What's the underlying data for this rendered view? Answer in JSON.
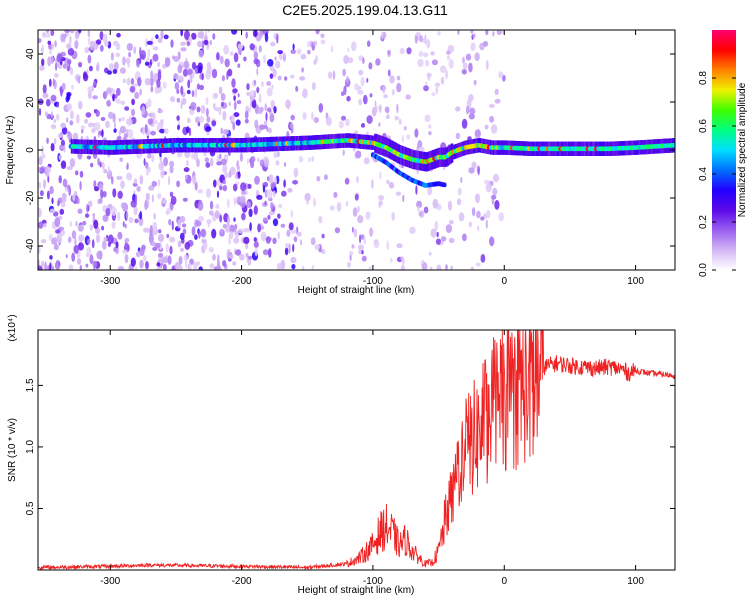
{
  "title": "C2E5.2025.199.04.13.G11",
  "chart_data": [
    {
      "type": "heatmap",
      "xlabel": "Height of straight line (km)",
      "ylabel": "Frequency (Hz)",
      "xlim": [
        -355,
        130
      ],
      "ylim": [
        -50,
        50
      ],
      "xticks": [
        -300,
        -200,
        -100,
        0,
        100
      ],
      "yticks": [
        -40,
        -20,
        0,
        20,
        40
      ],
      "colorbar": {
        "label": "Normalized spectral amplitude",
        "range": [
          0,
          1
        ],
        "ticks": [
          "0.0",
          "0.2",
          "0.4",
          "0.6",
          "0.8"
        ],
        "tick_values": [
          0,
          0.2,
          0.4,
          0.6,
          0.8
        ],
        "colors": [
          "#ffffff",
          "#d4b6f5",
          "#9a5ef0",
          "#5a08e8",
          "#2200ff",
          "#0070ff",
          "#00e0ff",
          "#00ff80",
          "#40ff00",
          "#f0f000",
          "#ff8000",
          "#ff0000",
          "#ff0070"
        ]
      },
      "ridge_frequency": {
        "x": [
          -330,
          -300,
          -250,
          -200,
          -150,
          -120,
          -100,
          -90,
          -80,
          -70,
          -60,
          -55,
          -50,
          -45,
          -40,
          -30,
          -20,
          -10,
          0,
          20,
          50,
          80,
          100,
          130
        ],
        "y": [
          1.5,
          1,
          2,
          2,
          3,
          4,
          3,
          1,
          -2,
          -4,
          -5,
          -4,
          -3,
          -3,
          -1,
          1,
          2,
          1,
          1,
          0.5,
          0.5,
          0.5,
          1,
          2
        ]
      },
      "grid": false
    },
    {
      "type": "line",
      "xlabel": "Height of straight line (km)",
      "ylabel": "SNR (10 * v/v)",
      "yscale_note": "(x10⁴)",
      "xlim": [
        -355,
        130
      ],
      "ylim": [
        0,
        1.95
      ],
      "xticks": [
        -300,
        -200,
        -100,
        0,
        100
      ],
      "yticks": [
        "0.5",
        "1.0",
        "1.5"
      ],
      "ytick_values": [
        0.5,
        1.0,
        1.5
      ],
      "series": [
        {
          "color": "#ee2222",
          "x": [
            -355,
            -300,
            -270,
            -200,
            -150,
            -120,
            -110,
            -100,
            -95,
            -90,
            -85,
            -80,
            -75,
            -70,
            -60,
            -55,
            -50,
            -45,
            -40,
            -35,
            -30,
            -25,
            -20,
            -15,
            -10,
            0,
            10,
            20,
            30,
            40,
            50,
            60,
            70,
            80,
            90,
            95,
            100,
            110,
            130
          ],
          "y": [
            0.02,
            0.03,
            0.04,
            0.03,
            0.02,
            0.05,
            0.1,
            0.2,
            0.3,
            0.35,
            0.3,
            0.2,
            0.25,
            0.15,
            0.05,
            0.06,
            0.15,
            0.4,
            0.6,
            0.85,
            0.95,
            1.05,
            1.1,
            1.2,
            1.3,
            1.4,
            1.48,
            1.55,
            1.65,
            1.68,
            1.66,
            1.65,
            1.64,
            1.65,
            1.63,
            1.6,
            1.62,
            1.6,
            1.58
          ]
        }
      ],
      "grid": false
    }
  ]
}
